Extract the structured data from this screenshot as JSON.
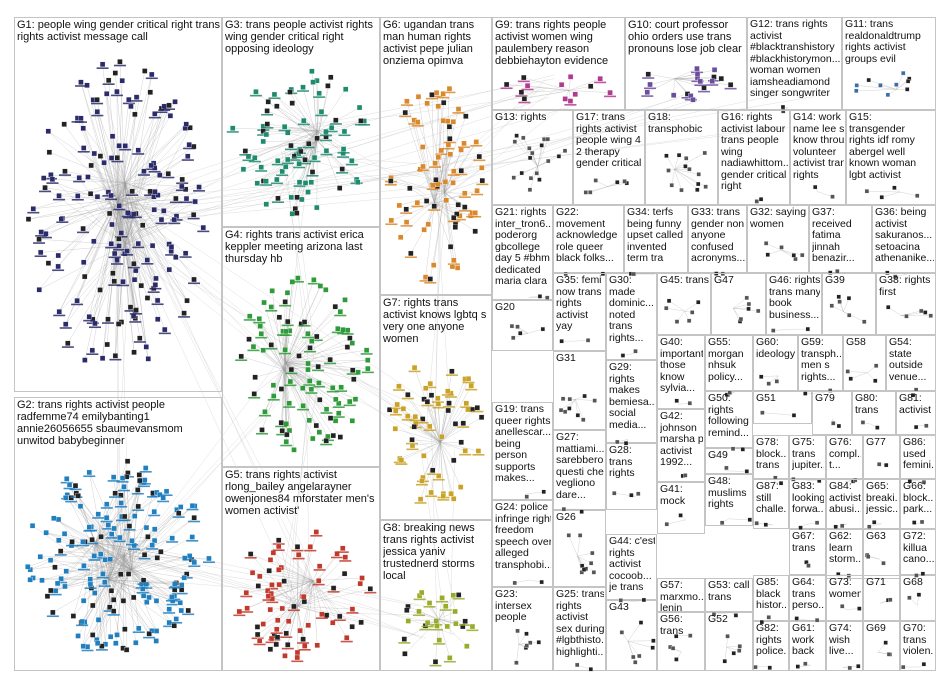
{
  "groups": [
    {
      "id": "G1",
      "text": "G1: people wing gender critical right trans\nrights activist message call",
      "color": "#2b2b6a"
    },
    {
      "id": "G2",
      "text": "G2: trans rights activist people\nradfemme74 emilybanting1\nannie26056655 sbaumevansmom\nunwitod babybeginner",
      "color": "#1f7fbf"
    },
    {
      "id": "G3",
      "text": "G3: trans people activist rights\nwing gender critical right\nopposing ideology",
      "color": "#1f8a6e"
    },
    {
      "id": "G4",
      "text": "G4: rights trans activist erica\nkeppler meeting arizona last\nthursday hb",
      "color": "#2e9a3a"
    },
    {
      "id": "G5",
      "text": "G5: trans rights activist\nrlong_bailey angelarayner\nowenjones84 mforstater men's\nwomen activist'",
      "color": "#c0392b"
    },
    {
      "id": "G6",
      "text": "G6: ugandan trans\nman human rights\nactivist pepe julian\nonziema opimva",
      "color": "#d9892b"
    },
    {
      "id": "G7",
      "text": "G7: rights trans\nactivist knows lgbtq s\nvery one anyone\nwomen",
      "color": "#c9a227"
    },
    {
      "id": "G8",
      "text": "G8: breaking news\ntrans rights activist\njessica yaniv\ntrustednerd storms\nlocal",
      "color": "#9aab2a"
    },
    {
      "id": "G9",
      "text": "G9: trans rights people\nactivist women wing\npaulembery reason\ndebbiehayton evidence",
      "color": "#b03a8f"
    },
    {
      "id": "G10",
      "text": "G10: court professor\nohio orders use trans\npronouns lose job clear",
      "color": "#6b4e9b"
    },
    {
      "id": "G11",
      "text": "G11: trans\nrealdonaldtrump\nrights activist\ngroups evil",
      "color": "#3a6ea5"
    },
    {
      "id": "G12",
      "text": "G12: trans rights\nactivist\n#blacktranshistory\n#blackhistorymon...\nwoman women\niamsheadiamond\nsinger songwriter",
      "color": "#444444"
    },
    {
      "id": "G13",
      "text": "G13: rights",
      "color": "#555555"
    },
    {
      "id": "G14",
      "text": "G14: work\nname lee siba\nknow through\nvolunteer\nactivist trans\nrights",
      "color": "#555555"
    },
    {
      "id": "G15",
      "text": "G15:\ntransgender\nrights idf romy\nabergel well\nknown woman\nlgbt activist",
      "color": "#555555"
    },
    {
      "id": "G16",
      "text": "G16: rights\nactivist labour\ntrans people\nwing\nnadiawhittom...\ngender critical\nright",
      "color": "#555555"
    },
    {
      "id": "G17",
      "text": "G17: trans\nrights activist\npeople wing 4\n2 therapy\ngender critical",
      "color": "#555555"
    },
    {
      "id": "G18",
      "text": "G18:\ntransphobic",
      "color": "#555555"
    },
    {
      "id": "G19",
      "text": "G19: trans\nqueer rights\nanellescar...\nbeing\nperson\nsupports\nmakes...",
      "color": "#555555"
    },
    {
      "id": "G20",
      "text": "G20",
      "color": "#555555"
    },
    {
      "id": "G21",
      "text": "G21: rights\ninter_tron6...\npoderorg\ngbcollege\nday 5 #bhm\ndedicated\nmaria clara",
      "color": "#555555"
    },
    {
      "id": "G22",
      "text": "G22:\nmovement\nacknowledge\nrole queer\nblack folks...",
      "color": "#555555"
    },
    {
      "id": "G23",
      "text": "G23:\nintersex\npeople",
      "color": "#555555"
    },
    {
      "id": "G24",
      "text": "G24: police\ninfringe right\nfreedom\nspeech over\nalleged\ntransphobi...",
      "color": "#555555"
    },
    {
      "id": "G25",
      "text": "G25: trans\nrights\nactivist\nsex during\n#lgbthisto...\nhighlighti...",
      "color": "#555555"
    },
    {
      "id": "G26",
      "text": "G26",
      "color": "#555555"
    },
    {
      "id": "G27",
      "text": "G27:\nmattiami...\nsarebbero\nquesti che\nvegliono\ndare...",
      "color": "#555555"
    },
    {
      "id": "G28",
      "text": "G28:\ntrans\nrights",
      "color": "#555555"
    },
    {
      "id": "G29",
      "text": "G29:\nrights\nmakes\nbemiesa...\nsocial\nmedia...",
      "color": "#555555"
    },
    {
      "id": "G30",
      "text": "G30:\nmade\ndominic...\nnoted\ntrans\nrights...",
      "color": "#555555"
    },
    {
      "id": "G31",
      "text": "G31",
      "color": "#555555"
    },
    {
      "id": "G32",
      "text": "G32: saying\nwomen",
      "color": "#555555"
    },
    {
      "id": "G33",
      "text": "G33: trans\ngender non\nanyone\nconfused\nacronyms...",
      "color": "#555555"
    },
    {
      "id": "G34",
      "text": "G34: terfs\nbeing funny\nupset called\ninvented\nterm tra",
      "color": "#555555"
    },
    {
      "id": "G35",
      "text": "G35: femi\nnow trans\nrights\nactivist\nyay",
      "color": "#555555"
    },
    {
      "id": "G36",
      "text": "G36: being\nactivist\nsakuranos...\nsetoacina\nathenanike...",
      "color": "#555555"
    },
    {
      "id": "G37",
      "text": "G37:\nreceived\nfatima\njinnah\nbenazir...",
      "color": "#555555"
    },
    {
      "id": "G38",
      "text": "G38: rights\nfirst",
      "color": "#555555"
    },
    {
      "id": "G39",
      "text": "G39",
      "color": "#555555"
    },
    {
      "id": "G40",
      "text": "G40:\nimportant\nthose\nknow\nsylvia...",
      "color": "#555555"
    },
    {
      "id": "G41",
      "text": "G41:\nmock",
      "color": "#555555"
    },
    {
      "id": "G42",
      "text": "G42:\njohnson\nmarsha p\nactivist\n1992...",
      "color": "#555555"
    },
    {
      "id": "G43",
      "text": "G43",
      "color": "#555555"
    },
    {
      "id": "G44",
      "text": "G44: c'est\nrights\nactivist\ncocoob...\nje trans",
      "color": "#555555"
    },
    {
      "id": "G45",
      "text": "G45: trans",
      "color": "#555555"
    },
    {
      "id": "G46",
      "text": "G46: rights\ntrans many\nbook\nbusiness...",
      "color": "#555555"
    },
    {
      "id": "G47",
      "text": "G47",
      "color": "#555555"
    },
    {
      "id": "G48",
      "text": "G48:\nmuslims\nrights",
      "color": "#555555"
    },
    {
      "id": "G49",
      "text": "G49",
      "color": "#555555"
    },
    {
      "id": "G50",
      "text": "G50:\nrights\nfollowing\nremind...",
      "color": "#555555"
    },
    {
      "id": "G51",
      "text": "G51",
      "color": "#555555"
    },
    {
      "id": "G52",
      "text": "G52",
      "color": "#555555"
    },
    {
      "id": "G53",
      "text": "G53: call\ntrans",
      "color": "#555555"
    },
    {
      "id": "G54",
      "text": "G54:\nstate\noutside\nvenue...",
      "color": "#555555"
    },
    {
      "id": "G55",
      "text": "G55:\nmorgan\nnhsuk\npolicy...",
      "color": "#555555"
    },
    {
      "id": "G56",
      "text": "G56:\ntrans",
      "color": "#555555"
    },
    {
      "id": "G57",
      "text": "G57:\nmarxmo...\nlenin\ntrans...",
      "color": "#555555"
    },
    {
      "id": "G58",
      "text": "G58",
      "color": "#555555"
    },
    {
      "id": "G59",
      "text": "G59:\ntransph...\nmen s\nrights...",
      "color": "#555555"
    },
    {
      "id": "G60",
      "text": "G60:\nideology",
      "color": "#555555"
    },
    {
      "id": "G61",
      "text": "G61:\nwork\nback",
      "color": "#555555"
    },
    {
      "id": "G62",
      "text": "G62:\nlearn\nstorm...",
      "color": "#555555"
    },
    {
      "id": "G63",
      "text": "G63",
      "color": "#555555"
    },
    {
      "id": "G64",
      "text": "G64:\ntrans\nperso...",
      "color": "#555555"
    },
    {
      "id": "G65",
      "text": "G65:\nbreaki...\njessic...",
      "color": "#555555"
    },
    {
      "id": "G66",
      "text": "G66:\nblock...\npark...",
      "color": "#555555"
    },
    {
      "id": "G67",
      "text": "G67:\ntrans",
      "color": "#555555"
    },
    {
      "id": "G68",
      "text": "G68",
      "color": "#555555"
    },
    {
      "id": "G69",
      "text": "G69",
      "color": "#555555"
    },
    {
      "id": "G70",
      "text": "G70:\ntrans\nviolen...",
      "color": "#555555"
    },
    {
      "id": "G71",
      "text": "G71",
      "color": "#555555"
    },
    {
      "id": "G72",
      "text": "G72:\nkillua\ncano...",
      "color": "#555555"
    },
    {
      "id": "G73",
      "text": "G73:\nwomen",
      "color": "#555555"
    },
    {
      "id": "G74",
      "text": "G74:\nwish\nlive...",
      "color": "#555555"
    },
    {
      "id": "G75",
      "text": "G75:\ntrans\njupiter...",
      "color": "#555555"
    },
    {
      "id": "G76",
      "text": "G76:\ncompl...\nt...",
      "color": "#555555"
    },
    {
      "id": "G77",
      "text": "G77",
      "color": "#555555"
    },
    {
      "id": "G78",
      "text": "G78:\nblock...\ntrans",
      "color": "#555555"
    },
    {
      "id": "G79",
      "text": "G79",
      "color": "#555555"
    },
    {
      "id": "G80",
      "text": "G80:\ntrans",
      "color": "#555555"
    },
    {
      "id": "G81",
      "text": "G81:\nactivist",
      "color": "#555555"
    },
    {
      "id": "G82",
      "text": "G82:\nrights\npolice...",
      "color": "#555555"
    },
    {
      "id": "G83",
      "text": "G83:\nlooking\nforwa...",
      "color": "#555555"
    },
    {
      "id": "G84",
      "text": "G84:\nactivist\nabusi...",
      "color": "#555555"
    },
    {
      "id": "G85",
      "text": "G85:\nblack\nhistor...",
      "color": "#555555"
    },
    {
      "id": "G86",
      "text": "G86:\nused\nfemini...",
      "color": "#555555"
    },
    {
      "id": "G87",
      "text": "G87:\nstill\nchalle...",
      "color": "#555555"
    }
  ]
}
